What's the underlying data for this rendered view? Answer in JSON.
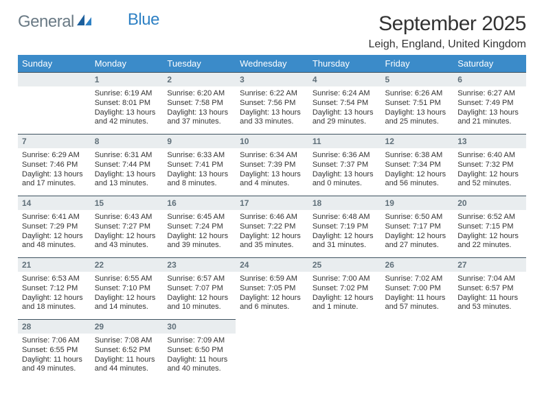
{
  "brand": {
    "general": "General",
    "blue": "Blue"
  },
  "header": {
    "month_title": "September 2025",
    "location": "Leigh, England, United Kingdom"
  },
  "calendar": {
    "type": "table",
    "header_bg": "#3b8bc9",
    "header_text_color": "#ffffff",
    "daynum_bg": "#e9edef",
    "daynum_text_color": "#5f6f79",
    "border_color": "#3b4f5d",
    "body_text_color": "#333333",
    "background_color": "#ffffff",
    "label_fontsize": 13,
    "detail_fontsize": 11,
    "days_of_week": [
      "Sunday",
      "Monday",
      "Tuesday",
      "Wednesday",
      "Thursday",
      "Friday",
      "Saturday"
    ],
    "weeks": [
      [
        null,
        {
          "num": "1",
          "sunrise": "Sunrise: 6:19 AM",
          "sunset": "Sunset: 8:01 PM",
          "daylight": "Daylight: 13 hours and 42 minutes."
        },
        {
          "num": "2",
          "sunrise": "Sunrise: 6:20 AM",
          "sunset": "Sunset: 7:58 PM",
          "daylight": "Daylight: 13 hours and 37 minutes."
        },
        {
          "num": "3",
          "sunrise": "Sunrise: 6:22 AM",
          "sunset": "Sunset: 7:56 PM",
          "daylight": "Daylight: 13 hours and 33 minutes."
        },
        {
          "num": "4",
          "sunrise": "Sunrise: 6:24 AM",
          "sunset": "Sunset: 7:54 PM",
          "daylight": "Daylight: 13 hours and 29 minutes."
        },
        {
          "num": "5",
          "sunrise": "Sunrise: 6:26 AM",
          "sunset": "Sunset: 7:51 PM",
          "daylight": "Daylight: 13 hours and 25 minutes."
        },
        {
          "num": "6",
          "sunrise": "Sunrise: 6:27 AM",
          "sunset": "Sunset: 7:49 PM",
          "daylight": "Daylight: 13 hours and 21 minutes."
        }
      ],
      [
        {
          "num": "7",
          "sunrise": "Sunrise: 6:29 AM",
          "sunset": "Sunset: 7:46 PM",
          "daylight": "Daylight: 13 hours and 17 minutes."
        },
        {
          "num": "8",
          "sunrise": "Sunrise: 6:31 AM",
          "sunset": "Sunset: 7:44 PM",
          "daylight": "Daylight: 13 hours and 13 minutes."
        },
        {
          "num": "9",
          "sunrise": "Sunrise: 6:33 AM",
          "sunset": "Sunset: 7:41 PM",
          "daylight": "Daylight: 13 hours and 8 minutes."
        },
        {
          "num": "10",
          "sunrise": "Sunrise: 6:34 AM",
          "sunset": "Sunset: 7:39 PM",
          "daylight": "Daylight: 13 hours and 4 minutes."
        },
        {
          "num": "11",
          "sunrise": "Sunrise: 6:36 AM",
          "sunset": "Sunset: 7:37 PM",
          "daylight": "Daylight: 13 hours and 0 minutes."
        },
        {
          "num": "12",
          "sunrise": "Sunrise: 6:38 AM",
          "sunset": "Sunset: 7:34 PM",
          "daylight": "Daylight: 12 hours and 56 minutes."
        },
        {
          "num": "13",
          "sunrise": "Sunrise: 6:40 AM",
          "sunset": "Sunset: 7:32 PM",
          "daylight": "Daylight: 12 hours and 52 minutes."
        }
      ],
      [
        {
          "num": "14",
          "sunrise": "Sunrise: 6:41 AM",
          "sunset": "Sunset: 7:29 PM",
          "daylight": "Daylight: 12 hours and 48 minutes."
        },
        {
          "num": "15",
          "sunrise": "Sunrise: 6:43 AM",
          "sunset": "Sunset: 7:27 PM",
          "daylight": "Daylight: 12 hours and 43 minutes."
        },
        {
          "num": "16",
          "sunrise": "Sunrise: 6:45 AM",
          "sunset": "Sunset: 7:24 PM",
          "daylight": "Daylight: 12 hours and 39 minutes."
        },
        {
          "num": "17",
          "sunrise": "Sunrise: 6:46 AM",
          "sunset": "Sunset: 7:22 PM",
          "daylight": "Daylight: 12 hours and 35 minutes."
        },
        {
          "num": "18",
          "sunrise": "Sunrise: 6:48 AM",
          "sunset": "Sunset: 7:19 PM",
          "daylight": "Daylight: 12 hours and 31 minutes."
        },
        {
          "num": "19",
          "sunrise": "Sunrise: 6:50 AM",
          "sunset": "Sunset: 7:17 PM",
          "daylight": "Daylight: 12 hours and 27 minutes."
        },
        {
          "num": "20",
          "sunrise": "Sunrise: 6:52 AM",
          "sunset": "Sunset: 7:15 PM",
          "daylight": "Daylight: 12 hours and 22 minutes."
        }
      ],
      [
        {
          "num": "21",
          "sunrise": "Sunrise: 6:53 AM",
          "sunset": "Sunset: 7:12 PM",
          "daylight": "Daylight: 12 hours and 18 minutes."
        },
        {
          "num": "22",
          "sunrise": "Sunrise: 6:55 AM",
          "sunset": "Sunset: 7:10 PM",
          "daylight": "Daylight: 12 hours and 14 minutes."
        },
        {
          "num": "23",
          "sunrise": "Sunrise: 6:57 AM",
          "sunset": "Sunset: 7:07 PM",
          "daylight": "Daylight: 12 hours and 10 minutes."
        },
        {
          "num": "24",
          "sunrise": "Sunrise: 6:59 AM",
          "sunset": "Sunset: 7:05 PM",
          "daylight": "Daylight: 12 hours and 6 minutes."
        },
        {
          "num": "25",
          "sunrise": "Sunrise: 7:00 AM",
          "sunset": "Sunset: 7:02 PM",
          "daylight": "Daylight: 12 hours and 1 minute."
        },
        {
          "num": "26",
          "sunrise": "Sunrise: 7:02 AM",
          "sunset": "Sunset: 7:00 PM",
          "daylight": "Daylight: 11 hours and 57 minutes."
        },
        {
          "num": "27",
          "sunrise": "Sunrise: 7:04 AM",
          "sunset": "Sunset: 6:57 PM",
          "daylight": "Daylight: 11 hours and 53 minutes."
        }
      ],
      [
        {
          "num": "28",
          "sunrise": "Sunrise: 7:06 AM",
          "sunset": "Sunset: 6:55 PM",
          "daylight": "Daylight: 11 hours and 49 minutes."
        },
        {
          "num": "29",
          "sunrise": "Sunrise: 7:08 AM",
          "sunset": "Sunset: 6:52 PM",
          "daylight": "Daylight: 11 hours and 44 minutes."
        },
        {
          "num": "30",
          "sunrise": "Sunrise: 7:09 AM",
          "sunset": "Sunset: 6:50 PM",
          "daylight": "Daylight: 11 hours and 40 minutes."
        },
        null,
        null,
        null,
        null
      ]
    ]
  }
}
